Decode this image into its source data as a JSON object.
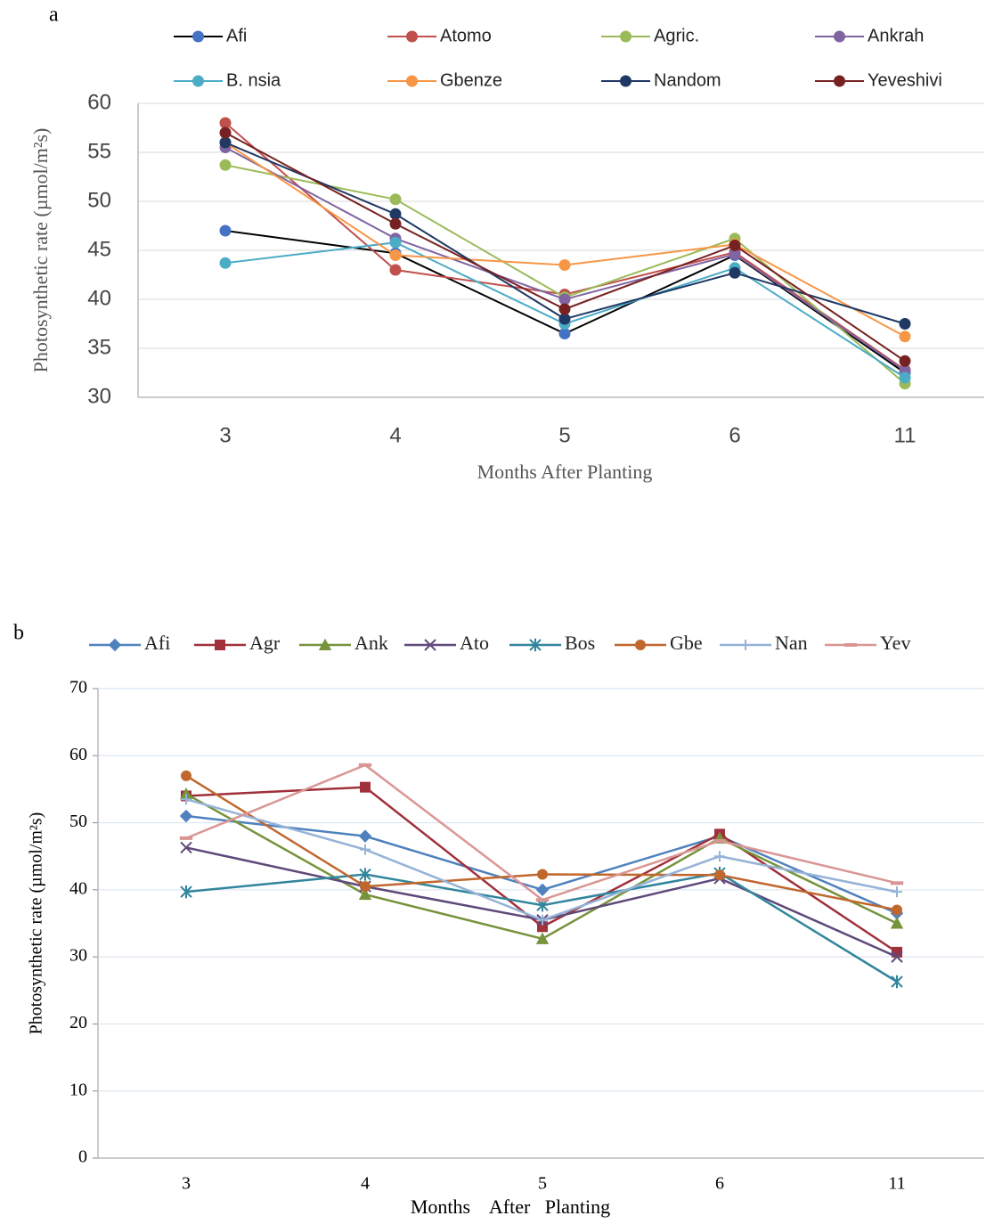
{
  "chart_data": [
    {
      "type": "line",
      "panel_label": "a",
      "x_label": "Months After Planting",
      "y_label": "Photosynthetic rate (µmol/m²s)",
      "categories": [
        "3",
        "4",
        "5",
        "6",
        "11"
      ],
      "ylim": [
        30,
        60
      ],
      "yticks": [
        30,
        35,
        40,
        45,
        50,
        55,
        60
      ],
      "grid": true,
      "legend": "top",
      "series": [
        {
          "name": "Afi",
          "color": "#000000",
          "marker_color": "#4472c4",
          "marker": "circle",
          "values": [
            47.0,
            44.7,
            36.5,
            44.5,
            32.5
          ]
        },
        {
          "name": "Atomo",
          "color": "#c0504d",
          "marker_color": "#c0504d",
          "marker": "circle",
          "values": [
            58.0,
            43.0,
            40.5,
            44.8,
            32.8
          ]
        },
        {
          "name": "Agric.",
          "color": "#9bbb59",
          "marker_color": "#9bbb59",
          "marker": "circle",
          "values": [
            53.7,
            50.2,
            40.2,
            46.2,
            31.4
          ]
        },
        {
          "name": "Ankrah",
          "color": "#8064a2",
          "marker_color": "#8064a2",
          "marker": "circle",
          "values": [
            55.5,
            46.2,
            40.0,
            44.6,
            32.7
          ]
        },
        {
          "name": "B. nsia",
          "color": "#4bacc6",
          "marker_color": "#4bacc6",
          "marker": "circle",
          "values": [
            43.7,
            45.8,
            37.5,
            43.2,
            32.0
          ]
        },
        {
          "name": "Gbenze",
          "color": "#f79646",
          "marker_color": "#f79646",
          "marker": "circle",
          "values": [
            56.0,
            44.5,
            43.5,
            45.6,
            36.2
          ]
        },
        {
          "name": "Nandom",
          "color": "#1f3864",
          "marker_color": "#1f3864",
          "marker": "circle",
          "values": [
            56.0,
            48.7,
            38.0,
            42.7,
            37.5
          ]
        },
        {
          "name": "Yeveshivi",
          "color": "#772222",
          "marker_color": "#772222",
          "marker": "circle",
          "values": [
            57.0,
            47.7,
            39.0,
            45.5,
            33.7
          ]
        }
      ]
    },
    {
      "type": "line",
      "panel_label": "b",
      "x_label": "Months    After   Planting",
      "y_label": "Photosynthetic rate (µmol/m²s)",
      "categories": [
        "3",
        "4",
        "5",
        "6",
        "11"
      ],
      "ylim": [
        0,
        70
      ],
      "yticks": [
        0,
        10,
        20,
        30,
        40,
        50,
        60,
        70
      ],
      "grid": true,
      "legend": "top",
      "series": [
        {
          "name": "Afi",
          "color": "#4f81bd",
          "marker_color": "#4f81bd",
          "marker": "diamond",
          "values": [
            51.0,
            48.0,
            40.0,
            48.0,
            36.5
          ]
        },
        {
          "name": "Agr",
          "color": "#a0303a",
          "marker_color": "#a0303a",
          "marker": "square",
          "values": [
            54.0,
            55.3,
            34.5,
            48.3,
            30.7
          ]
        },
        {
          "name": "Ank",
          "color": "#77933c",
          "marker_color": "#77933c",
          "marker": "triangle",
          "values": [
            54.3,
            39.3,
            32.7,
            47.7,
            35.0
          ]
        },
        {
          "name": "Ato",
          "color": "#5f497a",
          "marker_color": "#5f497a",
          "marker": "x",
          "values": [
            46.3,
            40.5,
            35.5,
            41.7,
            30.0
          ]
        },
        {
          "name": "Bos",
          "color": "#31859c",
          "marker_color": "#31859c",
          "marker": "star",
          "values": [
            39.7,
            42.3,
            37.7,
            42.5,
            26.3
          ]
        },
        {
          "name": "Gbe",
          "color": "#c0672e",
          "marker_color": "#c0672e",
          "marker": "circle",
          "values": [
            57.0,
            40.5,
            42.3,
            42.2,
            37.0
          ]
        },
        {
          "name": "Nan",
          "color": "#95b3d7",
          "marker_color": "#95b3d7",
          "marker": "plus",
          "values": [
            53.5,
            46.0,
            35.5,
            45.0,
            39.7
          ]
        },
        {
          "name": "Yev",
          "color": "#d99694",
          "marker_color": "#d99694",
          "marker": "dash",
          "values": [
            47.7,
            58.6,
            38.5,
            47.3,
            41.0
          ]
        }
      ]
    }
  ]
}
